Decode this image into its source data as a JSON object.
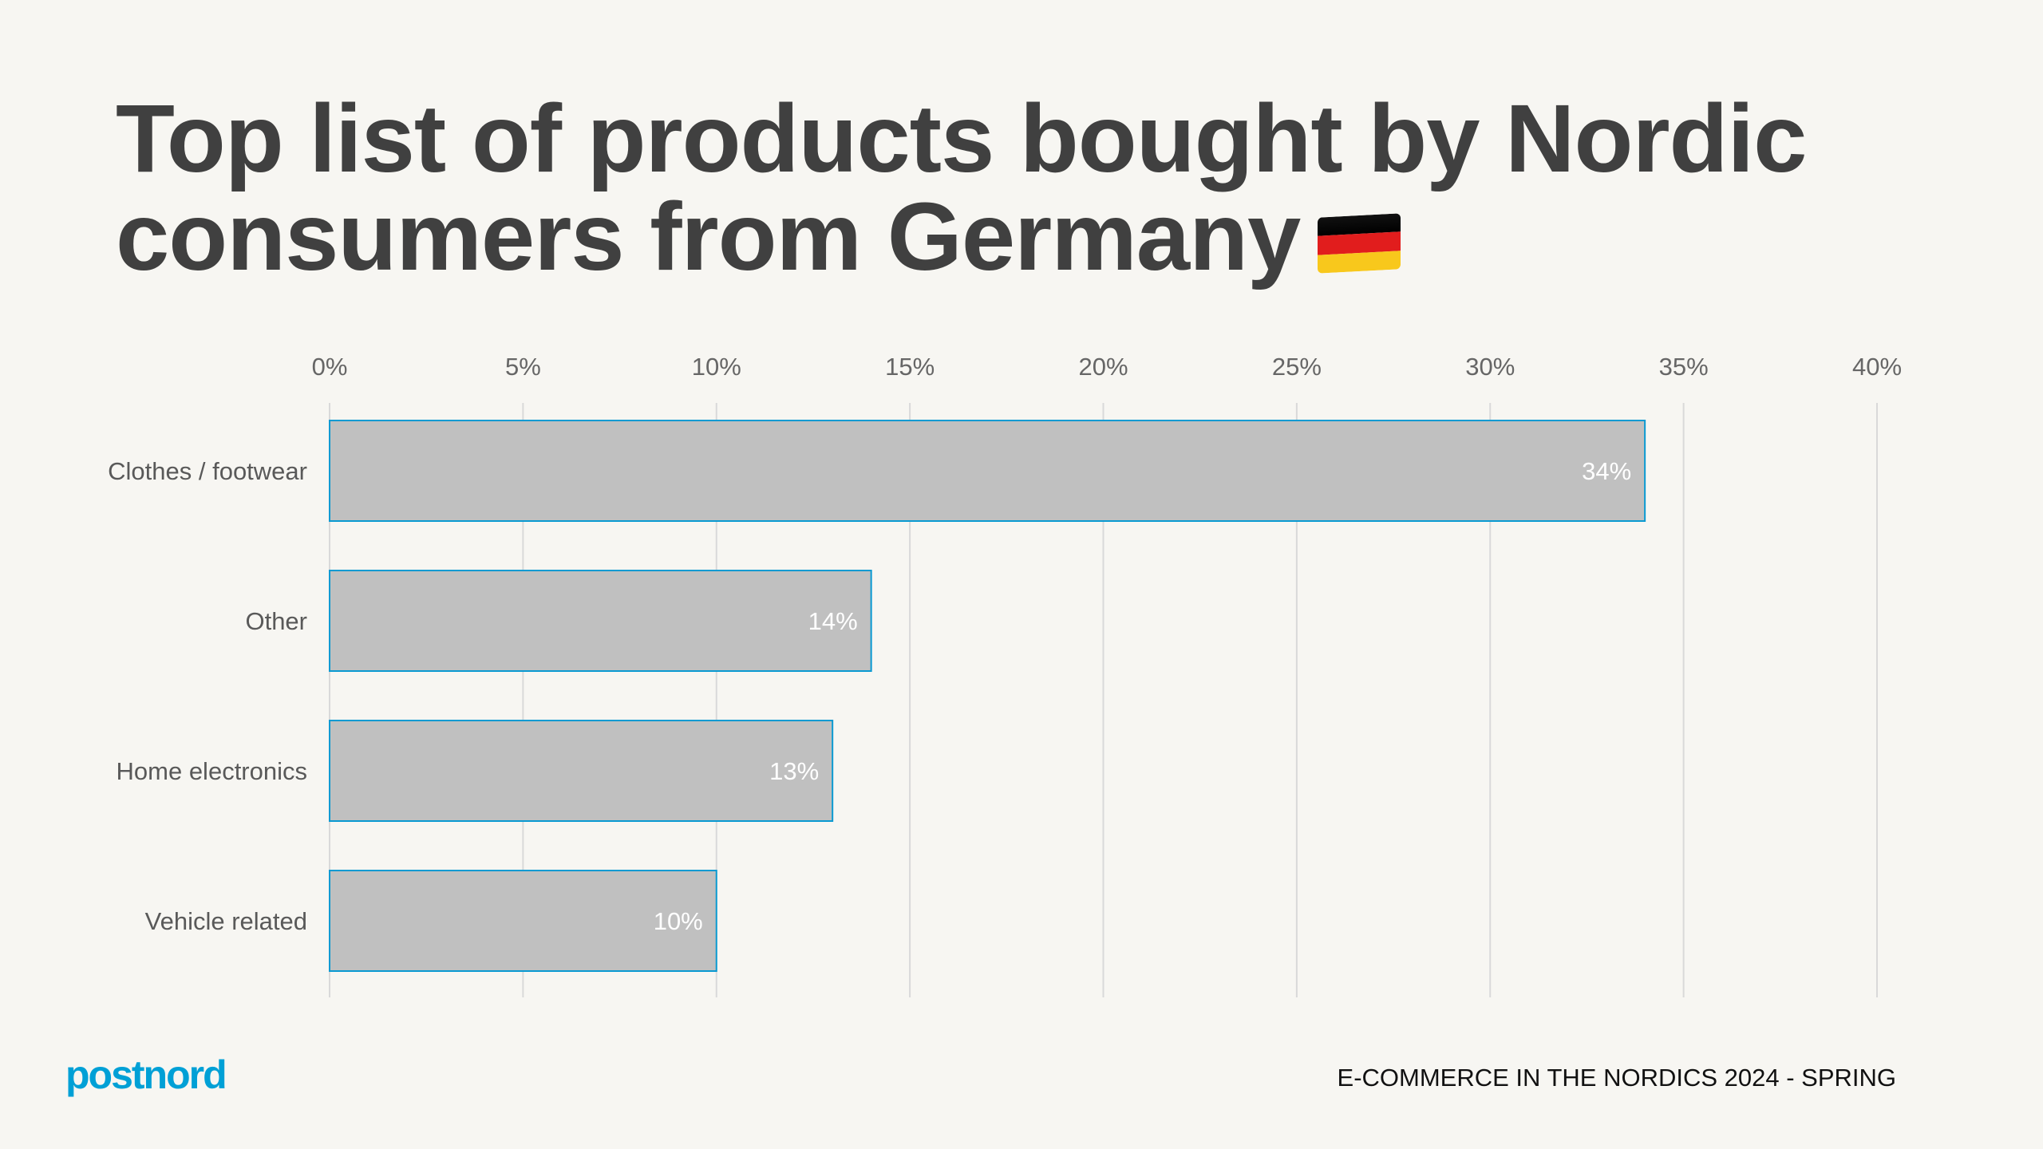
{
  "title": "Top list of products bought by Nordic consumers from Germany",
  "flag_icon": "germany-flag",
  "colors": {
    "background": "#f7f6f2",
    "bar_fill": "#c0c0c0",
    "bar_stroke": "#0a9ad2",
    "brand": "#00a0d6",
    "title": "#404040",
    "flag": [
      "#000000",
      "#dd0000",
      "#ffce00"
    ]
  },
  "chart_data": {
    "type": "bar",
    "orientation": "horizontal",
    "categories": [
      "Clothes / footwear",
      "Other",
      "Home electronics",
      "Vehicle related"
    ],
    "values": [
      34,
      14,
      13,
      10
    ],
    "data_labels": [
      "34%",
      "14%",
      "13%",
      "10%"
    ],
    "xlim": [
      0,
      40
    ],
    "x_ticks": [
      0,
      5,
      10,
      15,
      20,
      25,
      30,
      35,
      40
    ],
    "x_tick_labels": [
      "0%",
      "5%",
      "10%",
      "15%",
      "20%",
      "25%",
      "30%",
      "35%",
      "40%"
    ],
    "axis_position": "top",
    "grid": true
  },
  "footer": {
    "logo": "postnord",
    "text": "E-COMMERCE IN THE NORDICS 2024 - SPRING"
  }
}
